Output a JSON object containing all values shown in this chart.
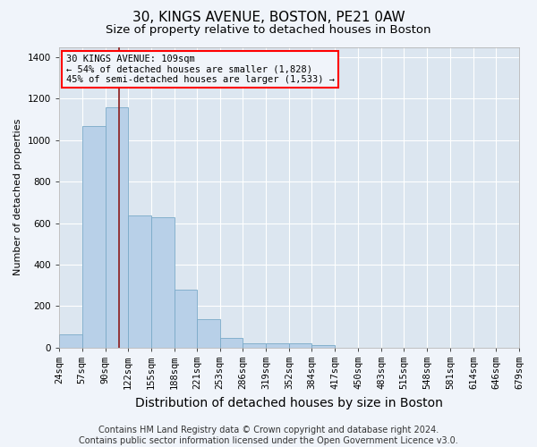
{
  "title": "30, KINGS AVENUE, BOSTON, PE21 0AW",
  "subtitle": "Size of property relative to detached houses in Boston",
  "xlabel": "Distribution of detached houses by size in Boston",
  "ylabel": "Number of detached properties",
  "footnote1": "Contains HM Land Registry data © Crown copyright and database right 2024.",
  "footnote2": "Contains public sector information licensed under the Open Government Licence v3.0.",
  "annotation_line1": "30 KINGS AVENUE: 109sqm",
  "annotation_line2": "← 54% of detached houses are smaller (1,828)",
  "annotation_line3": "45% of semi-detached houses are larger (1,533) →",
  "bar_color": "#b8d0e8",
  "bar_edge_color": "#7aaac8",
  "vline_color": "#8b1a1a",
  "vline_x": 109,
  "bin_edges": [
    24,
    57,
    90,
    122,
    155,
    188,
    221,
    253,
    286,
    319,
    352,
    384,
    417,
    450,
    483,
    515,
    548,
    581,
    614,
    646,
    679
  ],
  "bar_heights": [
    65,
    1070,
    1160,
    635,
    630,
    280,
    135,
    45,
    20,
    20,
    20,
    10,
    0,
    0,
    0,
    0,
    0,
    0,
    0,
    0
  ],
  "ylim": [
    0,
    1450
  ],
  "yticks": [
    0,
    200,
    400,
    600,
    800,
    1000,
    1200,
    1400
  ],
  "fig_background_color": "#f0f4fa",
  "plot_background_color": "#dce6f0",
  "grid_color": "#ffffff",
  "title_fontsize": 11,
  "subtitle_fontsize": 9.5,
  "ylabel_fontsize": 8,
  "xlabel_fontsize": 10,
  "tick_fontsize": 7.5,
  "annotation_fontsize": 7.5,
  "footnote_fontsize": 7
}
